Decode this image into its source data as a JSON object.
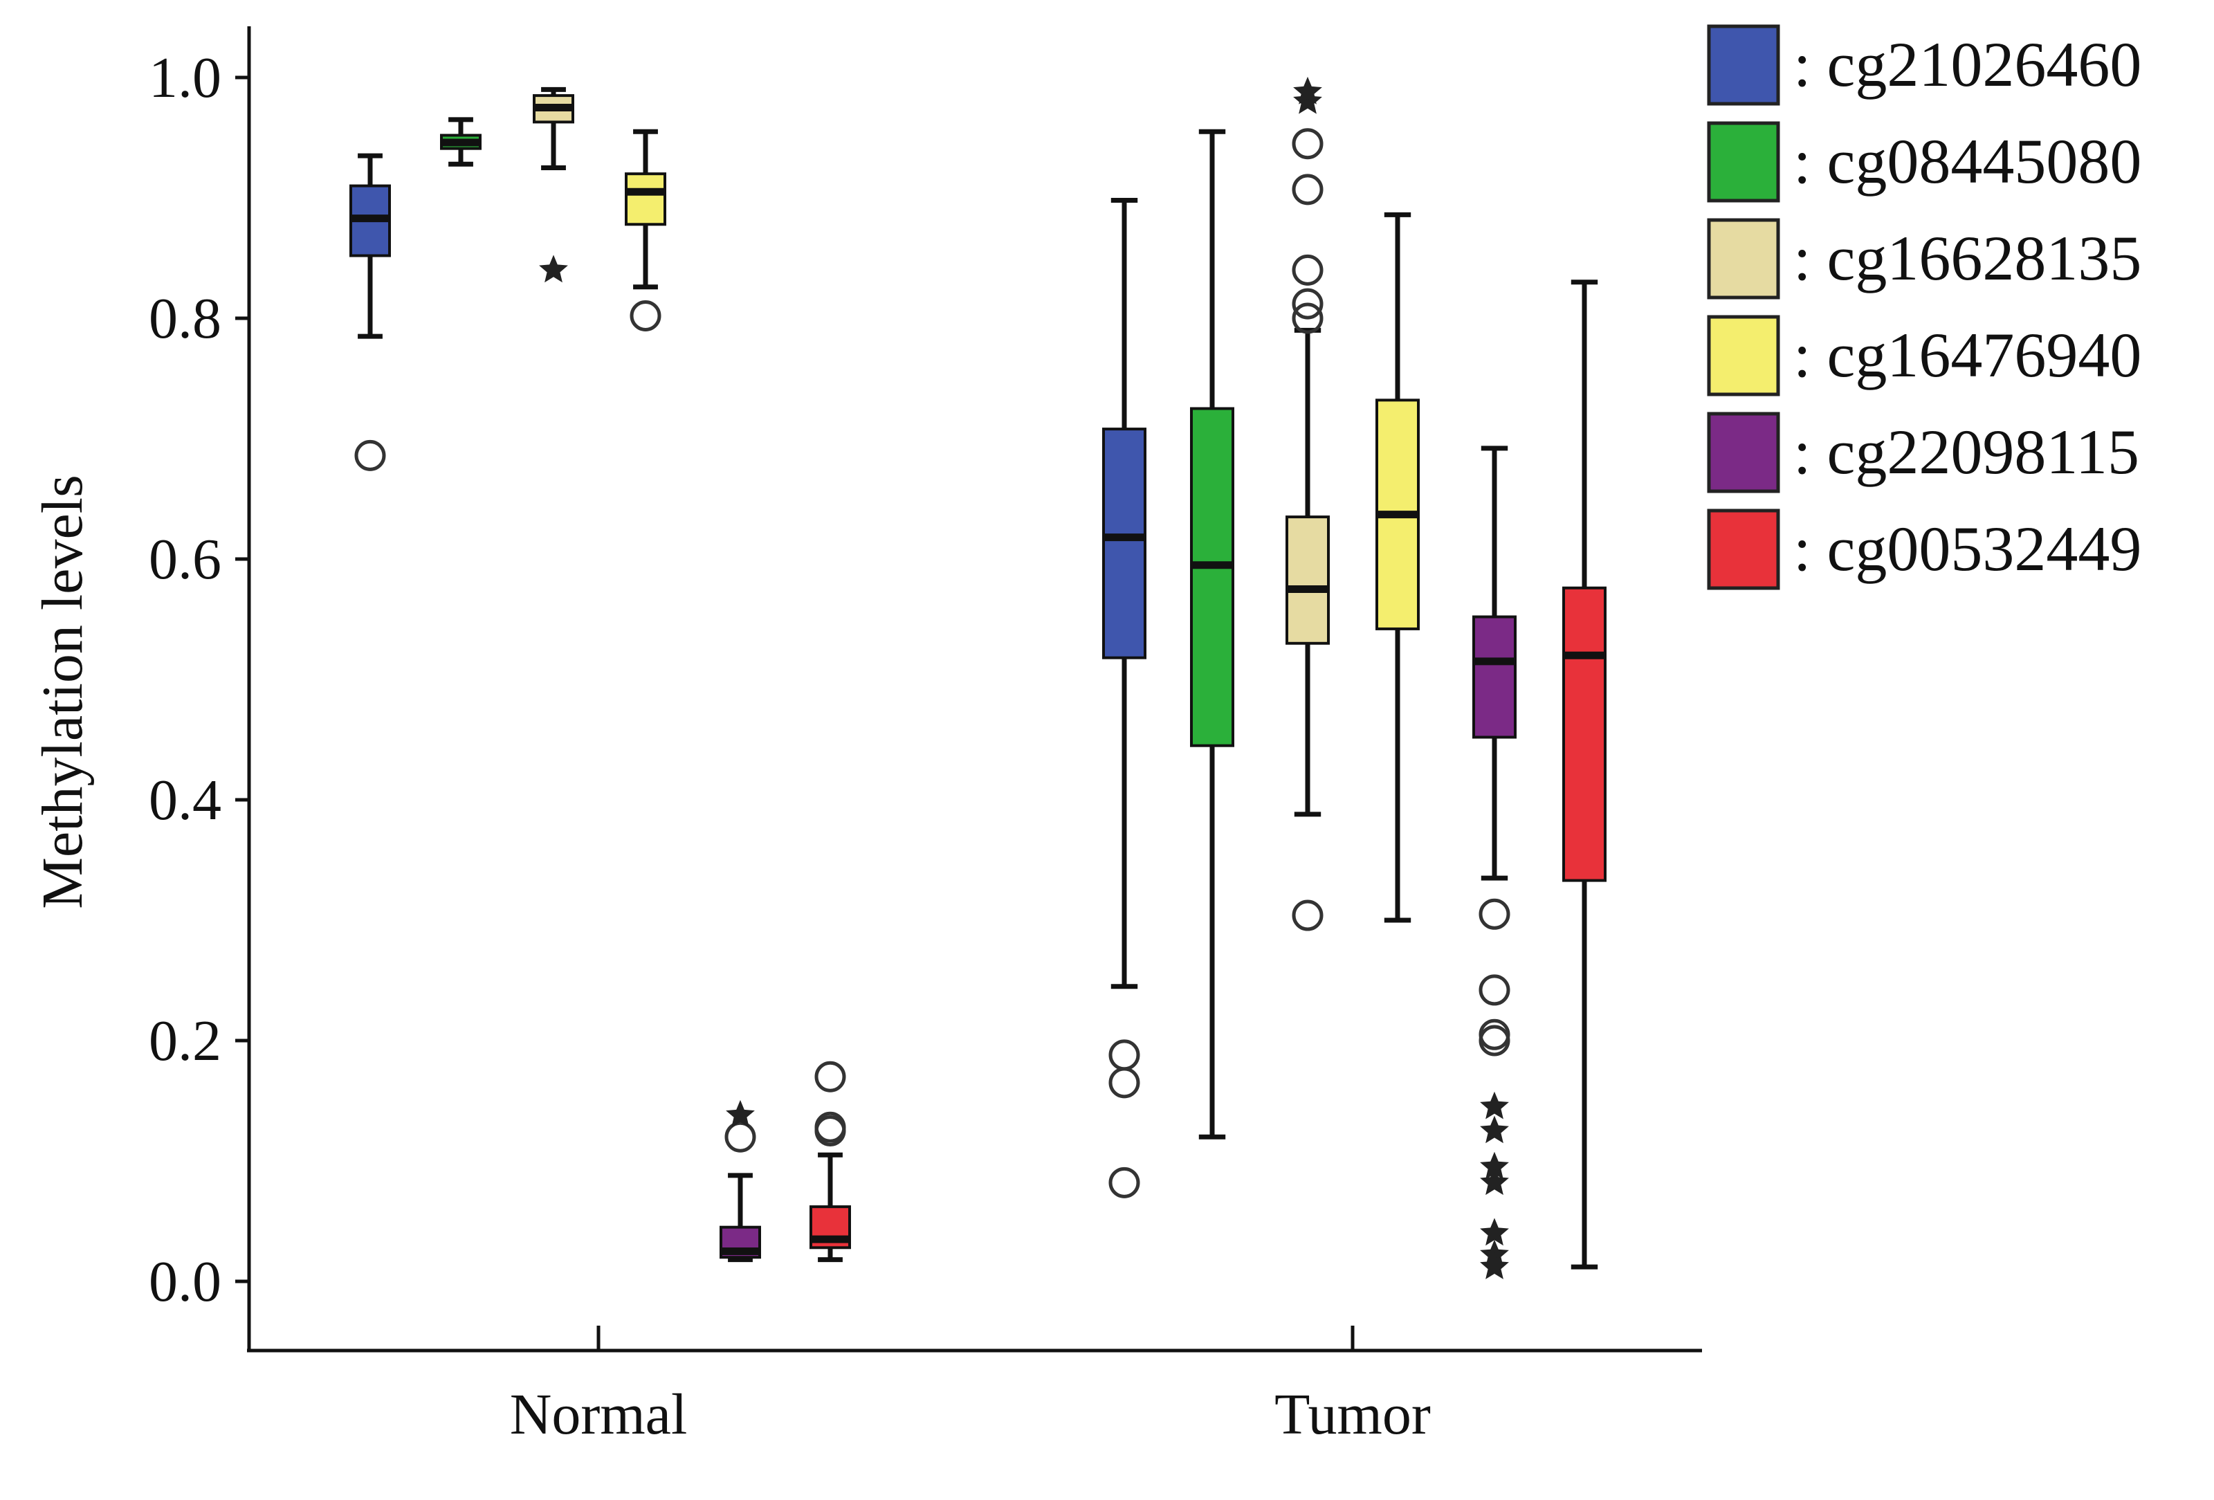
{
  "chart_data": {
    "type": "box",
    "xlabel": "",
    "ylabel": "Methylation levels",
    "ylim": [
      -0.1,
      1.05
    ],
    "y_ticks": [
      "0.0",
      "0.2",
      "0.4",
      "0.6",
      "0.8",
      "1.0"
    ],
    "categories": [
      "Normal",
      "Tumor"
    ],
    "legend_position": "top-right",
    "series": [
      {
        "name": ": cg21026460",
        "color": "#3f56ad"
      },
      {
        "name": ": cg08445080",
        "color": "#2bb03a"
      },
      {
        "name": ": cg16628135",
        "color": "#e6dba2"
      },
      {
        "name": ": cg16476940",
        "color": "#f4ee6e"
      },
      {
        "name": ": cg22098115",
        "color": "#7b2a86"
      },
      {
        "name": ": cg00532449",
        "color": "#e8323a"
      }
    ],
    "boxes": [
      {
        "group": "Normal",
        "series": 0,
        "min": 0.785,
        "q1": 0.852,
        "median": 0.883,
        "q3": 0.91,
        "max": 0.935,
        "outliers": [
          {
            "y": 0.686,
            "marker": "circle"
          }
        ]
      },
      {
        "group": "Normal",
        "series": 1,
        "min": 0.928,
        "q1": 0.941,
        "median": 0.946,
        "q3": 0.952,
        "max": 0.965,
        "outliers": []
      },
      {
        "group": "Normal",
        "series": 2,
        "min": 0.925,
        "q1": 0.963,
        "median": 0.975,
        "q3": 0.985,
        "max": 0.99,
        "outliers": [
          {
            "y": 0.84,
            "marker": "star"
          }
        ]
      },
      {
        "group": "Normal",
        "series": 3,
        "min": 0.826,
        "q1": 0.878,
        "median": 0.905,
        "q3": 0.92,
        "max": 0.955,
        "outliers": [
          {
            "y": 0.802,
            "marker": "circle"
          }
        ]
      },
      {
        "group": "Normal",
        "series": 4,
        "min": 0.018,
        "q1": 0.02,
        "median": 0.025,
        "q3": 0.045,
        "max": 0.088,
        "outliers": [
          {
            "y": 0.12,
            "marker": "circle"
          },
          {
            "y": 0.138,
            "marker": "star"
          }
        ]
      },
      {
        "group": "Normal",
        "series": 5,
        "min": 0.018,
        "q1": 0.028,
        "median": 0.035,
        "q3": 0.062,
        "max": 0.105,
        "outliers": [
          {
            "y": 0.125,
            "marker": "circle"
          },
          {
            "y": 0.128,
            "marker": "circle"
          },
          {
            "y": 0.17,
            "marker": "circle"
          }
        ]
      },
      {
        "group": "Tumor",
        "series": 0,
        "min": 0.245,
        "q1": 0.518,
        "median": 0.618,
        "q3": 0.708,
        "max": 0.898,
        "outliers": [
          {
            "y": 0.082,
            "marker": "circle"
          },
          {
            "y": 0.165,
            "marker": "circle"
          },
          {
            "y": 0.188,
            "marker": "circle"
          }
        ]
      },
      {
        "group": "Tumor",
        "series": 1,
        "min": 0.12,
        "q1": 0.445,
        "median": 0.595,
        "q3": 0.725,
        "max": 0.955,
        "outliers": []
      },
      {
        "group": "Tumor",
        "series": 2,
        "min": 0.388,
        "q1": 0.53,
        "median": 0.575,
        "q3": 0.635,
        "max": 0.79,
        "outliers": [
          {
            "y": 0.304,
            "marker": "circle"
          },
          {
            "y": 0.8,
            "marker": "circle"
          },
          {
            "y": 0.812,
            "marker": "circle"
          },
          {
            "y": 0.84,
            "marker": "circle"
          },
          {
            "y": 0.907,
            "marker": "circle"
          },
          {
            "y": 0.945,
            "marker": "circle"
          },
          {
            "y": 0.98,
            "marker": "star"
          },
          {
            "y": 0.988,
            "marker": "star"
          }
        ]
      },
      {
        "group": "Tumor",
        "series": 3,
        "min": 0.3,
        "q1": 0.542,
        "median": 0.637,
        "q3": 0.732,
        "max": 0.886,
        "outliers": []
      },
      {
        "group": "Tumor",
        "series": 4,
        "min": 0.335,
        "q1": 0.452,
        "median": 0.515,
        "q3": 0.552,
        "max": 0.692,
        "outliers": [
          {
            "y": 0.305,
            "marker": "circle"
          },
          {
            "y": 0.242,
            "marker": "circle"
          },
          {
            "y": 0.205,
            "marker": "circle"
          },
          {
            "y": 0.2,
            "marker": "circle"
          },
          {
            "y": 0.145,
            "marker": "star"
          },
          {
            "y": 0.125,
            "marker": "star"
          },
          {
            "y": 0.095,
            "marker": "star"
          },
          {
            "y": 0.082,
            "marker": "star"
          },
          {
            "y": 0.04,
            "marker": "star"
          },
          {
            "y": 0.022,
            "marker": "star"
          },
          {
            "y": 0.012,
            "marker": "star"
          }
        ]
      },
      {
        "group": "Tumor",
        "series": 5,
        "min": 0.012,
        "q1": 0.333,
        "median": 0.52,
        "q3": 0.576,
        "max": 0.83,
        "outliers": []
      }
    ]
  }
}
